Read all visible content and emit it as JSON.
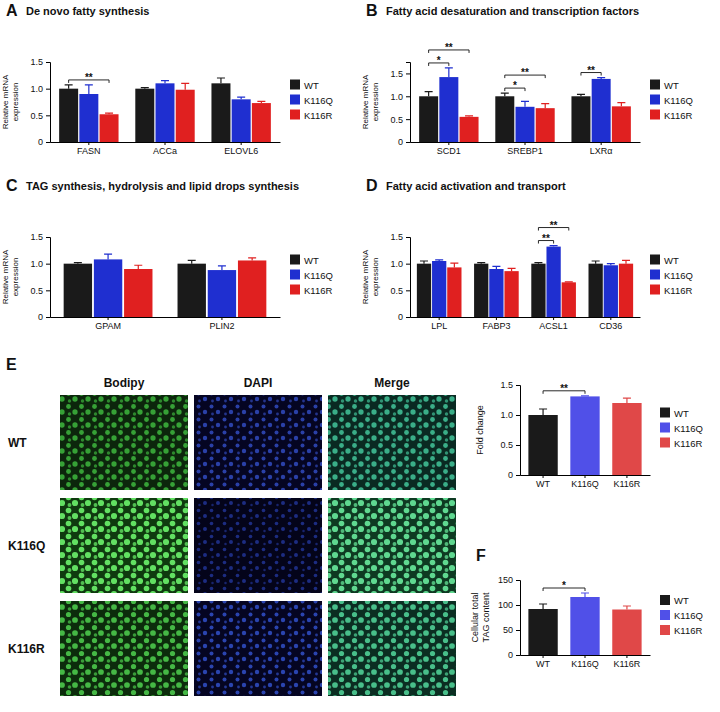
{
  "chart_data": [
    {
      "panel": "A",
      "type": "bar",
      "title": "De novo fatty synthesis",
      "y_label": "Relative mRNA expression",
      "categories": [
        "FASN",
        "ACCa",
        "ELOVL6"
      ],
      "series": [
        {
          "name": "WT",
          "color": "#1a1a1a",
          "values": [
            1.0,
            1.0,
            1.1
          ],
          "errors": [
            0.07,
            0.02,
            0.1
          ]
        },
        {
          "name": "K116Q",
          "color": "#1f2fd0",
          "values": [
            0.9,
            1.1,
            0.8
          ],
          "errors": [
            0.17,
            0.05,
            0.04
          ]
        },
        {
          "name": "K116R",
          "color": "#e02020",
          "values": [
            0.52,
            0.98,
            0.73
          ],
          "errors": [
            0.02,
            0.12,
            0.03
          ]
        }
      ],
      "ylim": [
        0,
        1.5
      ],
      "yticks": [
        0,
        0.5,
        {
          "value": 1,
          "label": "1.0"
        },
        1.5
      ],
      "legend": "right",
      "annotations": [
        {
          "category": "FASN",
          "from": "WT",
          "to": "K116R",
          "label": "**"
        }
      ]
    },
    {
      "panel": "B",
      "type": "bar",
      "title": "Fatty acid desaturation and transcription factors",
      "y_label": "Relative mRNA expression",
      "categories": [
        "SCD1",
        "SREBP1",
        "LXRα"
      ],
      "series": [
        {
          "name": "WT",
          "color": "#1a1a1a",
          "values": [
            1.0,
            1.0,
            1.0
          ],
          "errors": [
            0.1,
            0.07,
            0.04
          ]
        },
        {
          "name": "K116Q",
          "color": "#1f2fd0",
          "values": [
            1.42,
            0.77,
            1.38
          ],
          "errors": [
            0.2,
            0.12,
            0.03
          ]
        },
        {
          "name": "K116R",
          "color": "#e02020",
          "values": [
            0.55,
            0.74,
            0.78
          ],
          "errors": [
            0.02,
            0.1,
            0.08
          ]
        }
      ],
      "ylim": [
        0,
        1.75
      ],
      "yticks": [
        0,
        0.5,
        {
          "value": 1,
          "label": "1.0"
        },
        1.5
      ],
      "legend": "right",
      "annotations": [
        {
          "category": "SCD1",
          "from": "WT",
          "to": "K116Q",
          "label": "*"
        },
        {
          "category": "SCD1",
          "from": "WT",
          "to": "K116R",
          "label": "**"
        },
        {
          "category": "SREBP1",
          "from": "WT",
          "to": "K116Q",
          "label": "*"
        },
        {
          "category": "SREBP1",
          "from": "WT",
          "to": "K116R",
          "label": "**"
        },
        {
          "category": "LXRα",
          "from": "WT",
          "to": "K116Q",
          "label": "**"
        }
      ]
    },
    {
      "panel": "C",
      "type": "bar",
      "title": "TAG synthesis, hydrolysis and lipid drops synthesis",
      "y_label": "Relative mRNA expression",
      "categories": [
        "GPAM",
        "PLIN2"
      ],
      "series": [
        {
          "name": "WT",
          "color": "#1a1a1a",
          "values": [
            1.0,
            1.0
          ],
          "errors": [
            0.02,
            0.06
          ]
        },
        {
          "name": "K116Q",
          "color": "#1f2fd0",
          "values": [
            1.08,
            0.88
          ],
          "errors": [
            0.1,
            0.08
          ]
        },
        {
          "name": "K116R",
          "color": "#e02020",
          "values": [
            0.9,
            1.06
          ],
          "errors": [
            0.07,
            0.05
          ]
        }
      ],
      "ylim": [
        0,
        1.5
      ],
      "yticks": [
        0,
        0.5,
        {
          "value": 1,
          "label": "1.0"
        },
        1.5
      ],
      "legend": "right"
    },
    {
      "panel": "D",
      "type": "bar",
      "title": "Fatty acid activation and transport",
      "y_label": "Relative mRNA expression",
      "categories": [
        "LPL",
        "FABP3",
        "ACSL1",
        "CD36"
      ],
      "series": [
        {
          "name": "WT",
          "color": "#1a1a1a",
          "values": [
            1.0,
            1.0,
            1.0,
            1.0
          ],
          "errors": [
            0.05,
            0.02,
            0.02,
            0.05
          ]
        },
        {
          "name": "K116Q",
          "color": "#1f2fd0",
          "values": [
            1.05,
            0.9,
            1.32,
            0.97
          ],
          "errors": [
            0.02,
            0.05,
            0.02,
            0.03
          ]
        },
        {
          "name": "K116R",
          "color": "#e02020",
          "values": [
            0.93,
            0.86,
            0.65,
            1.0
          ],
          "errors": [
            0.08,
            0.05,
            0.01,
            0.06
          ]
        }
      ],
      "ylim": [
        0,
        1.5
      ],
      "yticks": [
        0,
        0.5,
        {
          "value": 1,
          "label": "1.0"
        },
        1.5
      ],
      "legend": "right",
      "annotations": [
        {
          "category": "ACSL1",
          "from": "WT",
          "to": "K116Q",
          "label": "**"
        },
        {
          "category": "ACSL1",
          "from": "WT",
          "to": "K116R",
          "label": "**"
        }
      ]
    },
    {
      "panel": "E",
      "type": "image_grid",
      "columns": [
        "Bodipy",
        "DAPI",
        "Merge"
      ],
      "rows": [
        "WT",
        "K116Q",
        "K116R"
      ]
    },
    {
      "type": "bar",
      "y_label": "Fold change",
      "categories": [
        "WT",
        "K116Q",
        "K116R"
      ],
      "values": [
        1.0,
        1.31,
        1.2
      ],
      "errors": [
        0.1,
        0.01,
        0.08
      ],
      "colors": [
        "#1a1a1a",
        "#5050e8",
        "#e04848"
      ],
      "ylim": [
        0,
        1.5
      ],
      "yticks": [
        0,
        0.5,
        {
          "value": 1,
          "label": "1.0"
        },
        1.5
      ],
      "legend": "right",
      "annotations": [
        {
          "from": "WT",
          "to": "K116Q",
          "label": "**"
        }
      ]
    },
    {
      "panel": "F",
      "type": "bar",
      "y_label": "Cellular total TAG content",
      "categories": [
        "WT",
        "K116Q",
        "K116R"
      ],
      "values": [
        92,
        116,
        91
      ],
      "errors": [
        10,
        8,
        7
      ],
      "colors": [
        "#1a1a1a",
        "#5050e8",
        "#e04848"
      ],
      "ylim": [
        0,
        150
      ],
      "yticks": [
        0,
        50,
        100,
        150
      ],
      "legend": "right",
      "annotations": [
        {
          "from": "WT",
          "to": "K116Q",
          "label": "*"
        }
      ]
    }
  ]
}
